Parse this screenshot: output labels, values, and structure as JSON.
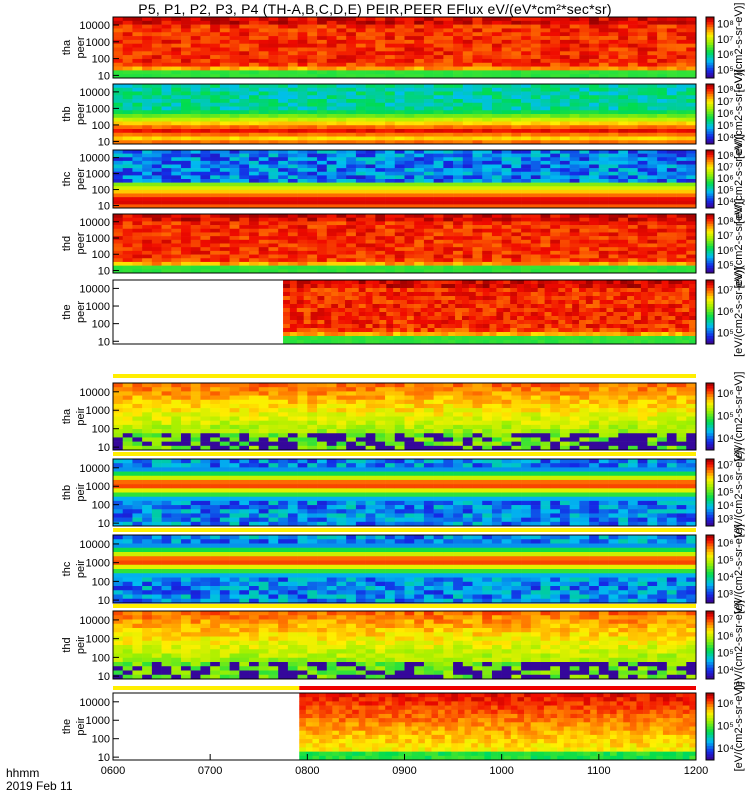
{
  "title": "P5, P1, P2, P3, P4 (TH-A,B,C,D,E) PEIR,PEER EFlux eV/(eV*cm²*sec*sr)",
  "footer": {
    "time_label": "hhmm",
    "date_label": "2019 Feb 11"
  },
  "colorbar_unit": "[eV/(cm2-s-sr-eV)]",
  "colors": {
    "background": "#ffffff",
    "bar_yellow": "#ffee00",
    "bar_red": "#ee0000"
  },
  "chart_data": {
    "type": "heatmap",
    "xlim": [
      "0600",
      "1200"
    ],
    "x_ticks": [
      "0600",
      "0700",
      "0800",
      "0900",
      "1000",
      "1100",
      "1200"
    ],
    "y_scale": "log",
    "y_ticks": [
      "10",
      "100",
      "1000",
      "10000"
    ],
    "colormap": "rainbow (blue-green-yellow-red)",
    "panels": [
      {
        "probe": "tha",
        "species": "peer",
        "ylim": [
          7,
          30000
        ],
        "cbar_ticks": [
          "10⁵",
          "10⁶",
          "10⁷",
          "10⁸"
        ],
        "profile": "electron-high",
        "data_start": "0600"
      },
      {
        "probe": "thb",
        "species": "peer",
        "ylim": [
          7,
          30000
        ],
        "cbar_ticks": [
          "10⁴",
          "10⁵",
          "10⁶",
          "10⁷",
          "10⁸"
        ],
        "profile": "electron-band",
        "data_start": "0600"
      },
      {
        "probe": "thc",
        "species": "peer",
        "ylim": [
          7,
          30000
        ],
        "cbar_ticks": [
          "10⁴",
          "10⁵",
          "10⁶",
          "10⁷",
          "10⁸"
        ],
        "profile": "electron-band-dark",
        "data_start": "0600"
      },
      {
        "probe": "thd",
        "species": "peer",
        "ylim": [
          7,
          30000
        ],
        "cbar_ticks": [
          "10⁵",
          "10⁶",
          "10⁷",
          "10⁸"
        ],
        "profile": "electron-high",
        "data_start": "0600"
      },
      {
        "probe": "the",
        "species": "peer",
        "ylim": [
          7,
          30000
        ],
        "cbar_ticks": [
          "10⁵",
          "10⁶",
          "10⁷"
        ],
        "profile": "electron-high",
        "data_start": "0745"
      },
      {
        "probe": "tha",
        "species": "peir",
        "ylim": [
          7,
          30000
        ],
        "cbar_ticks": [
          "10⁴",
          "10⁵",
          "10⁶"
        ],
        "profile": "ion",
        "data_start": "0600"
      },
      {
        "probe": "thb",
        "species": "peir",
        "ylim": [
          7,
          30000
        ],
        "cbar_ticks": [
          "10³",
          "10⁴",
          "10⁵",
          "10⁶",
          "10⁷"
        ],
        "profile": "ion-band",
        "data_start": "0600"
      },
      {
        "probe": "thc",
        "species": "peir",
        "ylim": [
          7,
          30000
        ],
        "cbar_ticks": [
          "10³",
          "10⁴",
          "10⁵",
          "10⁶"
        ],
        "profile": "ion-band",
        "data_start": "0600"
      },
      {
        "probe": "thd",
        "species": "peir",
        "ylim": [
          7,
          30000
        ],
        "cbar_ticks": [
          "10⁴",
          "10⁵",
          "10⁶",
          "10⁷"
        ],
        "profile": "ion",
        "data_start": "0600"
      },
      {
        "probe": "the",
        "species": "peir",
        "ylim": [
          7,
          30000
        ],
        "cbar_ticks": [
          "10⁴",
          "10⁵",
          "10⁶"
        ],
        "profile": "ion-high",
        "data_start": "0755"
      }
    ]
  }
}
